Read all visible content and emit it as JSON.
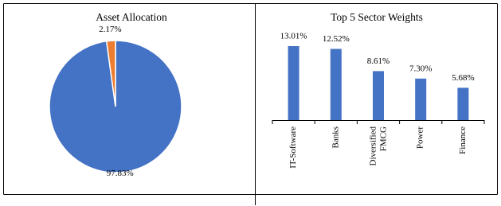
{
  "chart_data": [
    {
      "type": "pie",
      "title": "Asset Allocation",
      "values": [
        97.83,
        2.17
      ],
      "value_labels": [
        "97.83%",
        "2.17%"
      ],
      "colors": [
        "#4472c4",
        "#ed7d31"
      ]
    },
    {
      "type": "bar",
      "title": "Top 5 Sector Weights",
      "categories": [
        "IT-Software",
        "Banks",
        "Diversified FMCG",
        "Power",
        "Finance"
      ],
      "values": [
        13.01,
        12.52,
        8.61,
        7.3,
        5.68
      ],
      "value_labels": [
        "13.01%",
        "12.52%",
        "8.61%",
        "7.30%",
        "5.68%"
      ],
      "color": "#4472c4"
    }
  ]
}
